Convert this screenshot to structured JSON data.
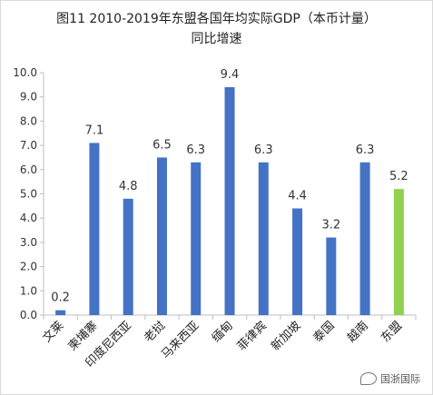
{
  "chart_data": {
    "type": "bar",
    "title_lines": [
      "图11 2010-2019年东盟各国年均实际GDP（本币计量）",
      "同比增速"
    ],
    "categories": [
      "文莱",
      "柬埔寨",
      "印度尼西亚",
      "老挝",
      "马来西亚",
      "缅甸",
      "菲律宾",
      "新加坡",
      "泰国",
      "越南",
      "东盟"
    ],
    "values": [
      0.2,
      7.1,
      4.8,
      6.5,
      6.3,
      9.4,
      6.3,
      4.4,
      3.2,
      6.3,
      5.2
    ],
    "data_labels": [
      "0.2",
      "7.1",
      "4.8",
      "6.5",
      "6.3",
      "9.4",
      "6.3",
      "4.4",
      "3.2",
      "6.3",
      "5.2"
    ],
    "bar_colors": [
      "#4472c4",
      "#4472c4",
      "#4472c4",
      "#4472c4",
      "#4472c4",
      "#4472c4",
      "#4472c4",
      "#4472c4",
      "#4472c4",
      "#4472c4",
      "#92d050"
    ],
    "ylim": [
      0,
      10
    ],
    "yticks": [
      "0.0",
      "1.0",
      "2.0",
      "3.0",
      "4.0",
      "5.0",
      "6.0",
      "7.0",
      "8.0",
      "9.0",
      "10.0"
    ],
    "grid": false,
    "legend": "none"
  },
  "watermark": {
    "icon": "wechat-icon",
    "text": "国浙国际"
  }
}
